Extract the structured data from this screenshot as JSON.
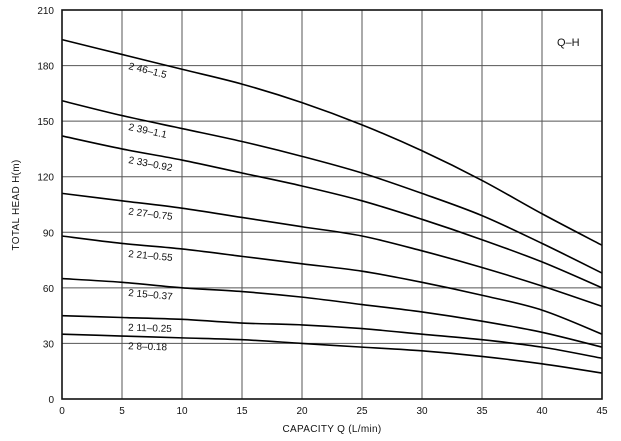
{
  "chart_data": {
    "type": "line",
    "title": "Q–H",
    "xlabel": "CAPACITY  Q (L/min)",
    "ylabel": "TOTAL HEAD  H(m)",
    "xlim": [
      0,
      45
    ],
    "ylim": [
      0,
      210
    ],
    "x_ticks": [
      0,
      5,
      10,
      15,
      20,
      25,
      30,
      35,
      40,
      45
    ],
    "y_ticks": [
      0,
      30,
      60,
      90,
      120,
      150,
      180,
      210
    ],
    "grid": true,
    "x": [
      0,
      5,
      10,
      15,
      20,
      25,
      30,
      35,
      40,
      45
    ],
    "series": [
      {
        "name": "2 46–1.5",
        "values": [
          194,
          186,
          178,
          170,
          160,
          148,
          134,
          118,
          100,
          83
        ]
      },
      {
        "name": "2 39–1.1",
        "values": [
          161,
          153,
          146,
          139,
          131,
          122,
          111,
          99,
          84,
          68
        ]
      },
      {
        "name": "2 33–0.92",
        "values": [
          142,
          135,
          129,
          122,
          115,
          107,
          97,
          86,
          74,
          60
        ]
      },
      {
        "name": "2 27–0.75",
        "values": [
          111,
          107,
          103,
          98,
          93,
          88,
          80,
          71,
          61,
          50
        ]
      },
      {
        "name": "2 21–0.55",
        "values": [
          88,
          84,
          81,
          77,
          73,
          69,
          63,
          56,
          48,
          35
        ]
      },
      {
        "name": "2 15–0.37",
        "values": [
          65,
          63,
          60,
          58,
          55,
          51,
          47,
          42,
          36,
          28
        ]
      },
      {
        "name": "2 11–0.25",
        "values": [
          45,
          44,
          43,
          41,
          40,
          38,
          35,
          32,
          28,
          22
        ]
      },
      {
        "name": "2 8–0.18",
        "values": [
          35,
          34,
          33,
          32,
          30,
          28,
          26,
          23,
          19,
          14
        ]
      }
    ]
  }
}
